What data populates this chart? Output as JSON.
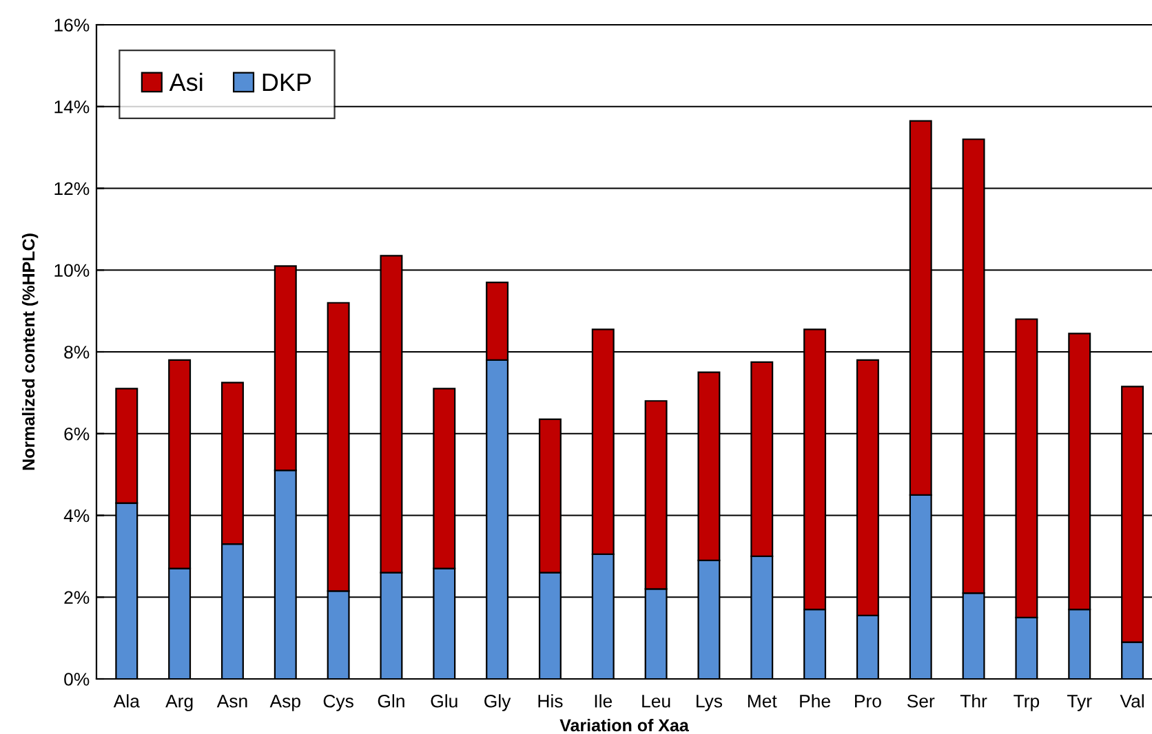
{
  "chart_data": {
    "type": "bar",
    "stacked": true,
    "xlabel": "Variation of Xaa",
    "ylabel": "Normalized content (%HPLC)",
    "categories": [
      "Ala",
      "Arg",
      "Asn",
      "Asp",
      "Cys",
      "Gln",
      "Glu",
      "Gly",
      "His",
      "Ile",
      "Leu",
      "Lys",
      "Met",
      "Phe",
      "Pro",
      "Ser",
      "Thr",
      "Trp",
      "Tyr",
      "Val"
    ],
    "series": [
      {
        "name": "DKP",
        "color": "#558ed5",
        "values": [
          4.3,
          2.7,
          3.3,
          5.1,
          2.15,
          2.6,
          2.7,
          7.8,
          2.6,
          3.05,
          2.2,
          2.9,
          3.0,
          1.7,
          1.55,
          4.5,
          2.1,
          1.5,
          1.7,
          0.9
        ]
      },
      {
        "name": "Asi",
        "color": "#c00000",
        "values": [
          2.8,
          5.1,
          3.95,
          5.0,
          7.05,
          7.75,
          4.4,
          1.9,
          3.75,
          5.5,
          4.6,
          4.6,
          4.75,
          6.85,
          6.25,
          9.15,
          11.1,
          7.3,
          6.75,
          6.25
        ]
      }
    ],
    "ylim": [
      0,
      16
    ],
    "yticks": [
      {
        "value": 0,
        "label": "0%"
      },
      {
        "value": 2,
        "label": "2%"
      },
      {
        "value": 4,
        "label": "4%"
      },
      {
        "value": 6,
        "label": "6%"
      },
      {
        "value": 8,
        "label": "8%"
      },
      {
        "value": 10,
        "label": "10%"
      },
      {
        "value": 12,
        "label": "12%"
      },
      {
        "value": 14,
        "label": "14%"
      },
      {
        "value": 16,
        "label": "16%"
      }
    ],
    "grid": "y",
    "legend": "top left"
  }
}
